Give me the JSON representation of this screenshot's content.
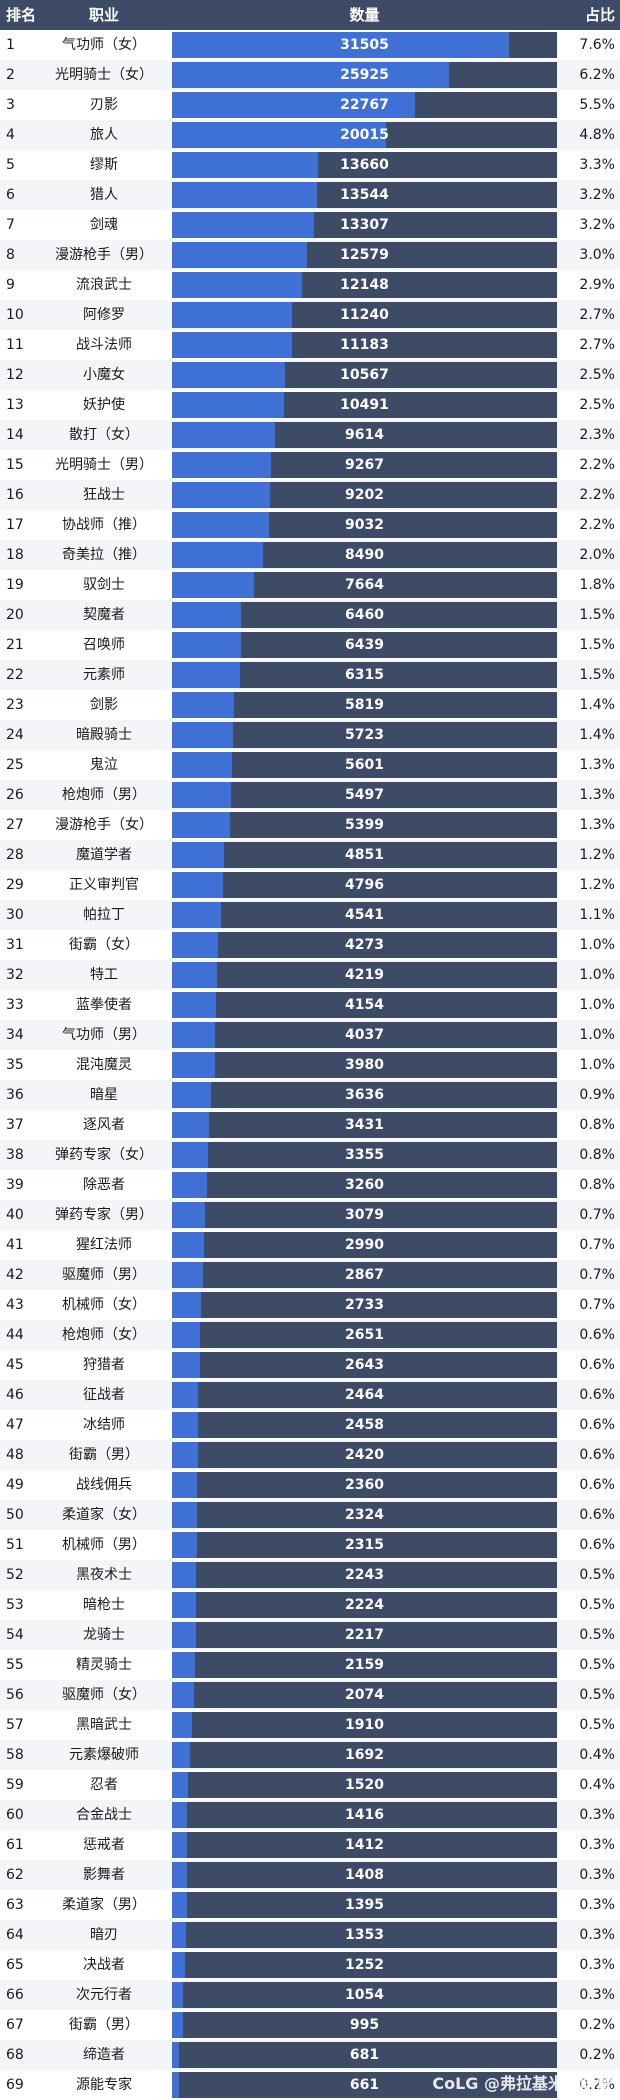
{
  "header": {
    "rank": "排名",
    "job": "职业",
    "value": "数量",
    "share": "占比"
  },
  "watermark": "CoLG @弗拉基米尔同意",
  "colors": {
    "header_bg": "#3e4b66",
    "bar_track": "#3e4b66",
    "bar_fill": "#3f70d6"
  },
  "chart_data": {
    "type": "bar",
    "orientation": "horizontal",
    "xlim": [
      0,
      36000
    ],
    "rows": [
      {
        "rank": "1",
        "job": "气功师（女）",
        "value": 31505,
        "share": "7.6%"
      },
      {
        "rank": "2",
        "job": "光明骑士（女）",
        "value": 25925,
        "share": "6.2%"
      },
      {
        "rank": "3",
        "job": "刃影",
        "value": 22767,
        "share": "5.5%"
      },
      {
        "rank": "4",
        "job": "旅人",
        "value": 20015,
        "share": "4.8%"
      },
      {
        "rank": "5",
        "job": "缪斯",
        "value": 13660,
        "share": "3.3%"
      },
      {
        "rank": "6",
        "job": "猎人",
        "value": 13544,
        "share": "3.2%"
      },
      {
        "rank": "7",
        "job": "剑魂",
        "value": 13307,
        "share": "3.2%"
      },
      {
        "rank": "8",
        "job": "漫游枪手（男）",
        "value": 12579,
        "share": "3.0%"
      },
      {
        "rank": "9",
        "job": "流浪武士",
        "value": 12148,
        "share": "2.9%"
      },
      {
        "rank": "10",
        "job": "阿修罗",
        "value": 11240,
        "share": "2.7%"
      },
      {
        "rank": "11",
        "job": "战斗法师",
        "value": 11183,
        "share": "2.7%"
      },
      {
        "rank": "12",
        "job": "小魔女",
        "value": 10567,
        "share": "2.5%"
      },
      {
        "rank": "13",
        "job": "妖护使",
        "value": 10491,
        "share": "2.5%"
      },
      {
        "rank": "14",
        "job": "散打（女）",
        "value": 9614,
        "share": "2.3%"
      },
      {
        "rank": "15",
        "job": "光明骑士（男）",
        "value": 9267,
        "share": "2.2%"
      },
      {
        "rank": "16",
        "job": "狂战士",
        "value": 9202,
        "share": "2.2%"
      },
      {
        "rank": "17",
        "job": "协战师（推）",
        "value": 9032,
        "share": "2.2%"
      },
      {
        "rank": "18",
        "job": "奇美拉（推）",
        "value": 8490,
        "share": "2.0%"
      },
      {
        "rank": "19",
        "job": "驭剑士",
        "value": 7664,
        "share": "1.8%"
      },
      {
        "rank": "20",
        "job": "契魔者",
        "value": 6460,
        "share": "1.5%"
      },
      {
        "rank": "21",
        "job": "召唤师",
        "value": 6439,
        "share": "1.5%"
      },
      {
        "rank": "22",
        "job": "元素师",
        "value": 6315,
        "share": "1.5%"
      },
      {
        "rank": "23",
        "job": "剑影",
        "value": 5819,
        "share": "1.4%"
      },
      {
        "rank": "24",
        "job": "暗殿骑士",
        "value": 5723,
        "share": "1.4%"
      },
      {
        "rank": "25",
        "job": "鬼泣",
        "value": 5601,
        "share": "1.3%"
      },
      {
        "rank": "26",
        "job": "枪炮师（男）",
        "value": 5497,
        "share": "1.3%"
      },
      {
        "rank": "27",
        "job": "漫游枪手（女）",
        "value": 5399,
        "share": "1.3%"
      },
      {
        "rank": "28",
        "job": "魔道学者",
        "value": 4851,
        "share": "1.2%"
      },
      {
        "rank": "29",
        "job": "正义审判官",
        "value": 4796,
        "share": "1.2%"
      },
      {
        "rank": "30",
        "job": "帕拉丁",
        "value": 4541,
        "share": "1.1%"
      },
      {
        "rank": "31",
        "job": "街霸（女）",
        "value": 4273,
        "share": "1.0%"
      },
      {
        "rank": "32",
        "job": "特工",
        "value": 4219,
        "share": "1.0%"
      },
      {
        "rank": "33",
        "job": "蓝拳使者",
        "value": 4154,
        "share": "1.0%"
      },
      {
        "rank": "34",
        "job": "气功师（男）",
        "value": 4037,
        "share": "1.0%"
      },
      {
        "rank": "35",
        "job": "混沌魔灵",
        "value": 3980,
        "share": "1.0%"
      },
      {
        "rank": "36",
        "job": "暗星",
        "value": 3636,
        "share": "0.9%"
      },
      {
        "rank": "37",
        "job": "逐风者",
        "value": 3431,
        "share": "0.8%"
      },
      {
        "rank": "38",
        "job": "弹药专家（女）",
        "value": 3355,
        "share": "0.8%"
      },
      {
        "rank": "39",
        "job": "除恶者",
        "value": 3260,
        "share": "0.8%"
      },
      {
        "rank": "40",
        "job": "弹药专家（男）",
        "value": 3079,
        "share": "0.7%"
      },
      {
        "rank": "41",
        "job": "猩红法师",
        "value": 2990,
        "share": "0.7%"
      },
      {
        "rank": "42",
        "job": "驱魔师（男）",
        "value": 2867,
        "share": "0.7%"
      },
      {
        "rank": "43",
        "job": "机械师（女）",
        "value": 2733,
        "share": "0.7%"
      },
      {
        "rank": "44",
        "job": "枪炮师（女）",
        "value": 2651,
        "share": "0.6%"
      },
      {
        "rank": "45",
        "job": "狩猎者",
        "value": 2643,
        "share": "0.6%"
      },
      {
        "rank": "46",
        "job": "征战者",
        "value": 2464,
        "share": "0.6%"
      },
      {
        "rank": "47",
        "job": "冰结师",
        "value": 2458,
        "share": "0.6%"
      },
      {
        "rank": "48",
        "job": "街霸（男）",
        "value": 2420,
        "share": "0.6%"
      },
      {
        "rank": "49",
        "job": "战线佣兵",
        "value": 2360,
        "share": "0.6%"
      },
      {
        "rank": "50",
        "job": "柔道家（女）",
        "value": 2324,
        "share": "0.6%"
      },
      {
        "rank": "51",
        "job": "机械师（男）",
        "value": 2315,
        "share": "0.6%"
      },
      {
        "rank": "52",
        "job": "黑夜术士",
        "value": 2243,
        "share": "0.5%"
      },
      {
        "rank": "53",
        "job": "暗枪士",
        "value": 2224,
        "share": "0.5%"
      },
      {
        "rank": "54",
        "job": "龙骑士",
        "value": 2217,
        "share": "0.5%"
      },
      {
        "rank": "55",
        "job": "精灵骑士",
        "value": 2159,
        "share": "0.5%"
      },
      {
        "rank": "56",
        "job": "驱魔师（女）",
        "value": 2074,
        "share": "0.5%"
      },
      {
        "rank": "57",
        "job": "黑暗武士",
        "value": 1910,
        "share": "0.5%"
      },
      {
        "rank": "58",
        "job": "元素爆破师",
        "value": 1692,
        "share": "0.4%"
      },
      {
        "rank": "59",
        "job": "忍者",
        "value": 1520,
        "share": "0.4%"
      },
      {
        "rank": "60",
        "job": "合金战士",
        "value": 1416,
        "share": "0.3%"
      },
      {
        "rank": "61",
        "job": "惩戒者",
        "value": 1412,
        "share": "0.3%"
      },
      {
        "rank": "62",
        "job": "影舞者",
        "value": 1408,
        "share": "0.3%"
      },
      {
        "rank": "63",
        "job": "柔道家（男）",
        "value": 1395,
        "share": "0.3%"
      },
      {
        "rank": "64",
        "job": "暗刃",
        "value": 1353,
        "share": "0.3%"
      },
      {
        "rank": "65",
        "job": "决战者",
        "value": 1252,
        "share": "0.3%"
      },
      {
        "rank": "66",
        "job": "次元行者",
        "value": 1054,
        "share": "0.3%"
      },
      {
        "rank": "67",
        "job": "街霸（男）",
        "value": 995,
        "share": "0.2%"
      },
      {
        "rank": "68",
        "job": "缔造者",
        "value": 681,
        "share": "0.2%"
      },
      {
        "rank": "69",
        "job": "源能专家",
        "value": 661,
        "share": "0.2%"
      }
    ]
  }
}
